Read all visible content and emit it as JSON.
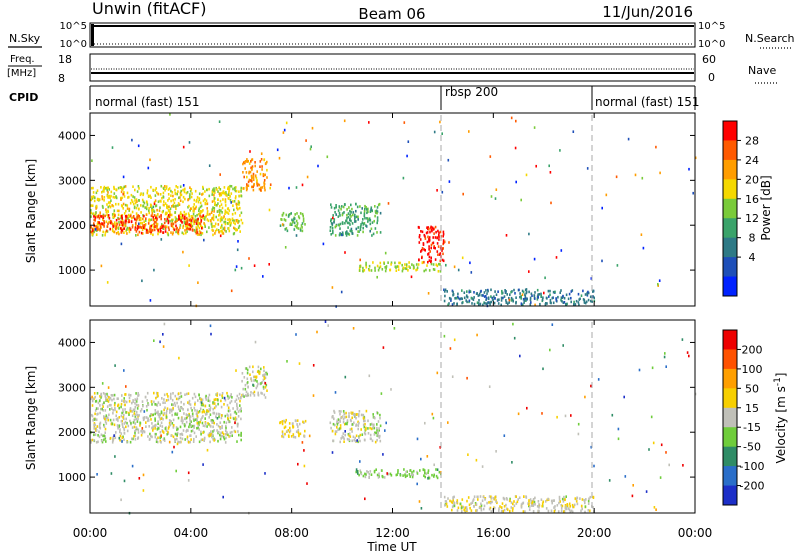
{
  "header": {
    "station": "Unwin (fitACF)",
    "beam": "Beam 06",
    "date": "11/Jun/2016"
  },
  "top_panels": {
    "nsky": {
      "label": "N.Sky",
      "tick_top": "10^5",
      "tick_bottom": "10^0"
    },
    "nsearch": {
      "label": "N.Search",
      "tick_top": "10^5",
      "tick_bottom": "10^0"
    },
    "freq": {
      "label_line1": "Freq.",
      "label_line2": "[MHz]",
      "ticks": [
        "18",
        "8"
      ]
    },
    "nave": {
      "label": "Nave",
      "ticks": [
        "60",
        "0"
      ]
    },
    "cpid": {
      "label": "CPID",
      "segments": [
        "normal (fast) 151",
        "rbsp 200",
        "normal (fast) 151"
      ]
    }
  },
  "legend": {
    "power_label": "Power [dB]",
    "power_ticks": [
      "28",
      "24",
      "20",
      "16",
      "12",
      "8",
      "4"
    ],
    "velocity_label": "Velocity [m s",
    "velocity_exponent": "-1",
    "velocity_label_end": "]",
    "velocity_ticks": [
      "200",
      "100",
      "50",
      "15",
      "-15",
      "-50",
      "-100",
      "-200"
    ]
  },
  "colors": {
    "power_scale": [
      "#0022ff",
      "#1e4fb8",
      "#2e7a86",
      "#3aa36a",
      "#7acb3a",
      "#f5d800",
      "#ff9d00",
      "#ff5a00",
      "#ff0000"
    ],
    "velocity_scale": [
      "#1c2fc8",
      "#2a6ec9",
      "#2f8c66",
      "#6fcd3b",
      "#c0c0b8",
      "#f7cf00",
      "#ff9f00",
      "#ff5200",
      "#ee0000"
    ],
    "grey_scatter": "#c0c0b8"
  },
  "chart_data": [
    {
      "type": "heatmap",
      "title": "",
      "xlabel": "Time UT",
      "ylabel": "Slant Range [km]",
      "x_tick_labels": [
        "00:00",
        "04:00",
        "08:00",
        "12:00",
        "16:00",
        "20:00",
        "00:00"
      ],
      "y_tick_labels": [
        "1000",
        "2000",
        "3000",
        "4000"
      ],
      "xlim_hours": [
        0,
        24
      ],
      "ylim_km": [
        200,
        4500
      ],
      "colorbar": "Power [dB]",
      "colorbar_range": [
        0,
        30
      ],
      "mode_changes_hours": [
        14,
        20
      ],
      "regions": [
        {
          "t": [
            0.0,
            6.0
          ],
          "r": [
            1800,
            2900
          ],
          "value": 18
        },
        {
          "t": [
            0.0,
            4.5
          ],
          "r": [
            1850,
            2250
          ],
          "value": 26
        },
        {
          "t": [
            6.0,
            7.0
          ],
          "r": [
            2800,
            3500
          ],
          "value": 22
        },
        {
          "t": [
            7.5,
            8.5
          ],
          "r": [
            1900,
            2300
          ],
          "value": 14
        },
        {
          "t": [
            9.5,
            11.5
          ],
          "r": [
            1800,
            2500
          ],
          "value": 12
        },
        {
          "t": [
            10.5,
            13.9
          ],
          "r": [
            1000,
            1200
          ],
          "value": 16
        },
        {
          "t": [
            13.0,
            14.0
          ],
          "r": [
            1200,
            2000
          ],
          "value": 28
        },
        {
          "t": [
            14.0,
            20.0
          ],
          "r": [
            250,
            600
          ],
          "value": 8
        }
      ]
    },
    {
      "type": "heatmap",
      "title": "",
      "xlabel": "Time UT",
      "ylabel": "Slant Range [km]",
      "x_tick_labels": [
        "00:00",
        "04:00",
        "08:00",
        "12:00",
        "16:00",
        "20:00",
        "00:00"
      ],
      "y_tick_labels": [
        "1000",
        "2000",
        "3000",
        "4000"
      ],
      "xlim_hours": [
        0,
        24
      ],
      "ylim_km": [
        200,
        4500
      ],
      "colorbar": "Velocity [m s^-1]",
      "colorbar_range": [
        -200,
        200
      ],
      "mode_changes_hours": [
        14,
        20
      ],
      "regions": [
        {
          "t": [
            0.0,
            6.0
          ],
          "r": [
            1800,
            2900
          ],
          "value": 0
        },
        {
          "t": [
            6.0,
            7.0
          ],
          "r": [
            2800,
            3500
          ],
          "value": 0
        },
        {
          "t": [
            7.5,
            8.5
          ],
          "r": [
            1900,
            2300
          ],
          "value": 20
        },
        {
          "t": [
            9.5,
            11.5
          ],
          "r": [
            1800,
            2500
          ],
          "value": 0
        },
        {
          "t": [
            10.5,
            13.9
          ],
          "r": [
            1000,
            1200
          ],
          "value": -40
        },
        {
          "t": [
            14.0,
            20.0
          ],
          "r": [
            250,
            600
          ],
          "value": 10
        }
      ]
    }
  ]
}
